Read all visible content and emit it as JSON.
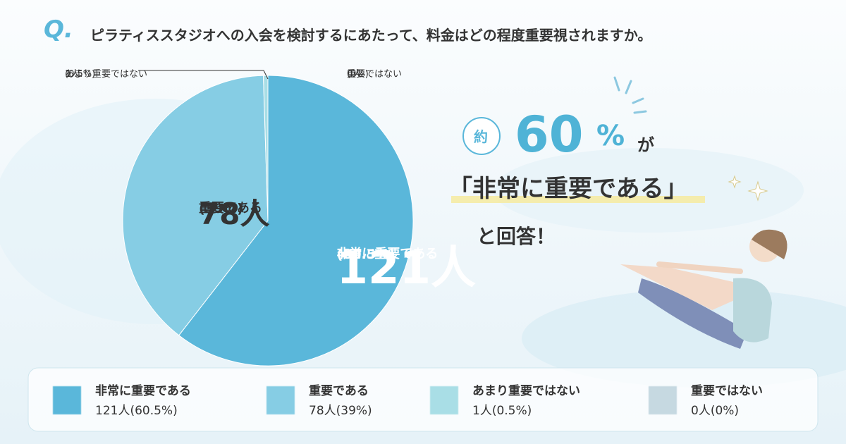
{
  "chart_data": {
    "type": "pie",
    "question_mark": "Q.",
    "title": "ピラティススタジオへの入会を検討するにあたって、料金はどの程度重要視されますか。",
    "categories": [
      "非常に重要である",
      "重要である",
      "あまり重要ではない",
      "重要ではない"
    ],
    "values": [
      121,
      78,
      1,
      0
    ],
    "value_labels": [
      "121人",
      "78人",
      "1人",
      "0人"
    ],
    "percents": [
      60.5,
      39,
      0.5,
      0
    ],
    "percent_labels": [
      "(60.5%)",
      "(39%)",
      "(0.5%)",
      "(0%)"
    ],
    "legend_labels": [
      "121人(60.5%)",
      "78人(39%)",
      "1人(0.5%)",
      "0人(0%)"
    ],
    "colors": [
      "#5ab7da",
      "#86cde4",
      "#a9dee6",
      "#c6d9e1"
    ],
    "callout": {
      "prefix": "約",
      "number": "60",
      "unit": "%",
      "particle": "が",
      "quote": "「非常に重要である」",
      "suffix": "と回答！"
    }
  }
}
